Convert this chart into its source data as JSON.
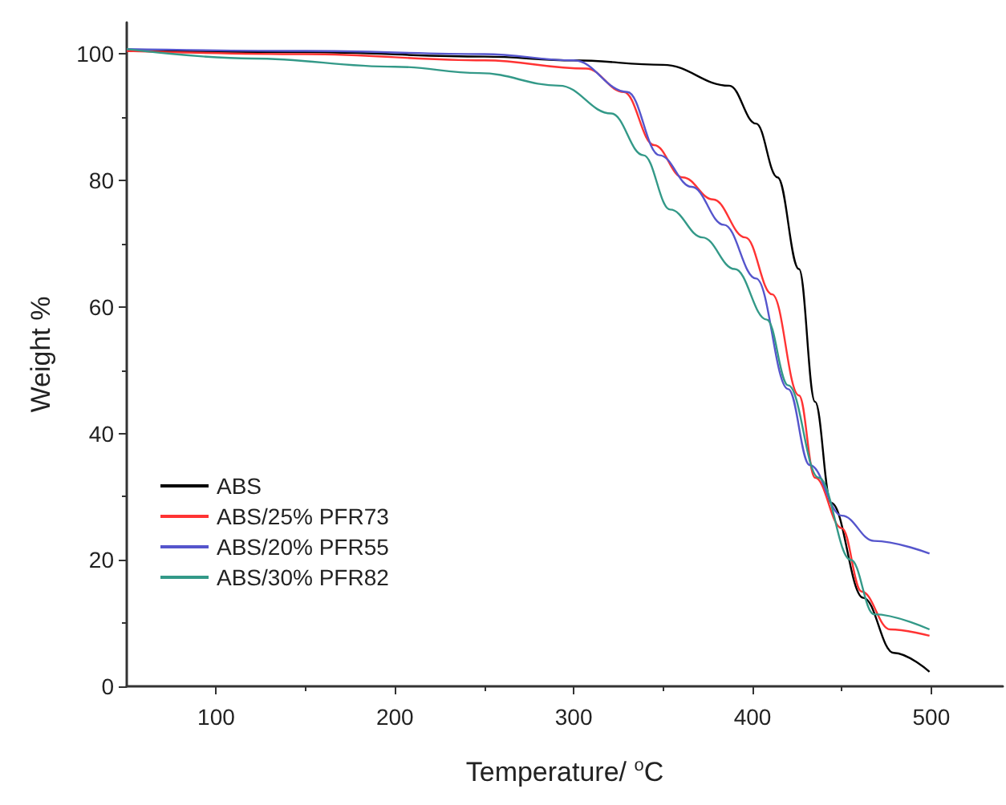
{
  "chart_data": {
    "type": "line",
    "xlabel": "Temperature/ $^{o}$C",
    "ylabel": "Weight %",
    "xlim": [
      50,
      540
    ],
    "xticks": [
      100,
      200,
      300,
      400,
      500
    ],
    "ylim": [
      0,
      105
    ],
    "yticks": [
      0,
      20,
      40,
      60,
      80,
      100
    ],
    "grid": false,
    "legend": "bottom left",
    "marker": "none",
    "line_style": "solid",
    "series": [
      {
        "name": "ABS",
        "color": "#000000",
        "x": [
          50,
          150,
          250,
          300,
          350,
          387,
          402,
          414,
          426,
          435,
          444,
          462,
          479,
          499
        ],
        "values": [
          100.5,
          100.3,
          99.6,
          99,
          98.3,
          95,
          89,
          80.5,
          66,
          45,
          29,
          14,
          5.3,
          2.3
        ]
      },
      {
        "name": "ABS/25% PFR73",
        "color": "#ff3333",
        "x": [
          50,
          150,
          250,
          307,
          328,
          345,
          361,
          378,
          396,
          411,
          426,
          435,
          450,
          461,
          477,
          499
        ],
        "values": [
          100.5,
          100,
          99,
          97.7,
          94,
          85.6,
          80.5,
          77,
          71,
          62,
          46,
          33,
          25,
          15,
          9,
          8
        ]
      },
      {
        "name": "ABS/20% PFR55",
        "color": "#5555cc",
        "x": [
          50,
          150,
          250,
          300,
          330,
          348,
          366,
          384,
          402,
          420,
          432,
          450,
          468,
          499
        ],
        "values": [
          100.8,
          100.5,
          100,
          99,
          94,
          84,
          79,
          73,
          64.5,
          47,
          35,
          27,
          23,
          21
        ]
      },
      {
        "name": "ABS/30% PFR82",
        "color": "#339988",
        "x": [
          50,
          120,
          200,
          247,
          292,
          321,
          339,
          354,
          372,
          390,
          408,
          420,
          437,
          455,
          468,
          499
        ],
        "values": [
          100.8,
          99.3,
          98,
          97,
          95,
          90.6,
          84,
          75.4,
          71,
          66,
          58,
          47.6,
          33,
          20,
          11.4,
          9
        ]
      }
    ]
  }
}
